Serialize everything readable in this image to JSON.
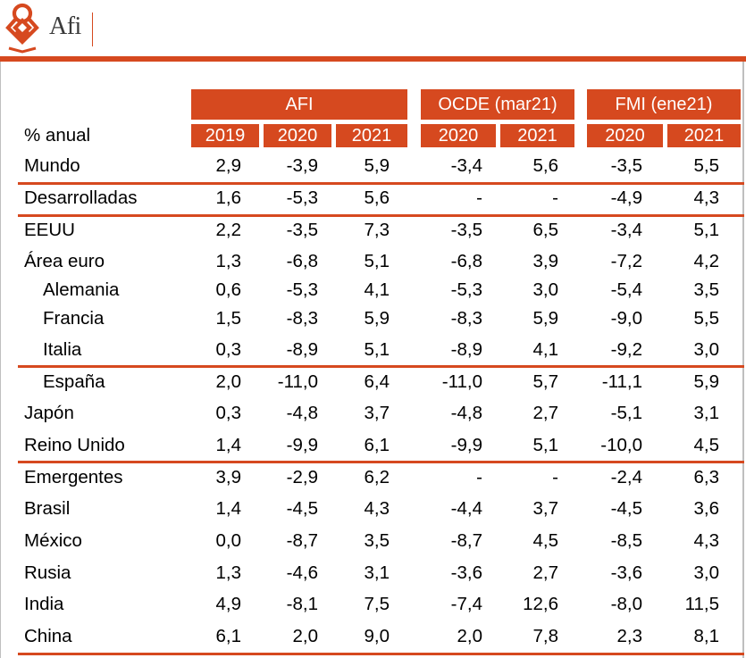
{
  "brand": {
    "name": "Afi",
    "color": "#d6491f"
  },
  "table": {
    "unit_label": "% anual",
    "groups": [
      {
        "label": "AFI"
      },
      {
        "label": "OCDE (mar21)"
      },
      {
        "label": "FMI (ene21)"
      }
    ],
    "years": [
      "2019",
      "2020",
      "2021",
      "2020",
      "2021",
      "2020",
      "2021"
    ],
    "rows": [
      {
        "label": "Mundo",
        "values": [
          "2,9",
          "-3,9",
          "5,9",
          "-3,4",
          "5,6",
          "-3,5",
          "5,5"
        ]
      },
      {
        "label": "Desarrolladas",
        "values": [
          "1,6",
          "-5,3",
          "5,6",
          "-",
          "-",
          "-4,9",
          "4,3"
        ]
      },
      {
        "label": "EEUU",
        "values": [
          "2,2",
          "-3,5",
          "7,3",
          "-3,5",
          "6,5",
          "-3,4",
          "5,1"
        ]
      },
      {
        "label": "Área euro",
        "values": [
          "1,3",
          "-6,8",
          "5,1",
          "-6,8",
          "3,9",
          "-7,2",
          "4,2"
        ]
      },
      {
        "label": "Alemania",
        "values": [
          "0,6",
          "-5,3",
          "4,1",
          "-5,3",
          "3,0",
          "-5,4",
          "3,5"
        ]
      },
      {
        "label": "Francia",
        "values": [
          "1,5",
          "-8,3",
          "5,9",
          "-8,3",
          "5,9",
          "-9,0",
          "5,5"
        ]
      },
      {
        "label": "Italia",
        "values": [
          "0,3",
          "-8,9",
          "5,1",
          "-8,9",
          "4,1",
          "-9,2",
          "3,0"
        ]
      },
      {
        "label": "España",
        "values": [
          "2,0",
          "-11,0",
          "6,4",
          "-11,0",
          "5,7",
          "-11,1",
          "5,9"
        ]
      },
      {
        "label": "Japón",
        "values": [
          "0,3",
          "-4,8",
          "3,7",
          "-4,8",
          "2,7",
          "-5,1",
          "3,1"
        ]
      },
      {
        "label": "Reino Unido",
        "values": [
          "1,4",
          "-9,9",
          "6,1",
          "-9,9",
          "5,1",
          "-10,0",
          "4,5"
        ]
      },
      {
        "label": "Emergentes",
        "values": [
          "3,9",
          "-2,9",
          "6,2",
          "-",
          "-",
          "-2,4",
          "6,3"
        ]
      },
      {
        "label": "Brasil",
        "values": [
          "1,4",
          "-4,5",
          "4,3",
          "-4,4",
          "3,7",
          "-4,5",
          "3,6"
        ]
      },
      {
        "label": "México",
        "values": [
          "0,0",
          "-8,7",
          "3,5",
          "-8,7",
          "4,5",
          "-8,5",
          "4,3"
        ]
      },
      {
        "label": "Rusia",
        "values": [
          "1,3",
          "-4,6",
          "3,1",
          "-3,6",
          "2,7",
          "-3,6",
          "3,0"
        ]
      },
      {
        "label": "India",
        "values": [
          "4,9",
          "-8,1",
          "7,5",
          "-7,4",
          "12,6",
          "-8,0",
          "11,5"
        ]
      },
      {
        "label": "China",
        "values": [
          "6,1",
          "2,0",
          "9,0",
          "2,0",
          "7,8",
          "2,3",
          "8,1"
        ]
      }
    ]
  }
}
